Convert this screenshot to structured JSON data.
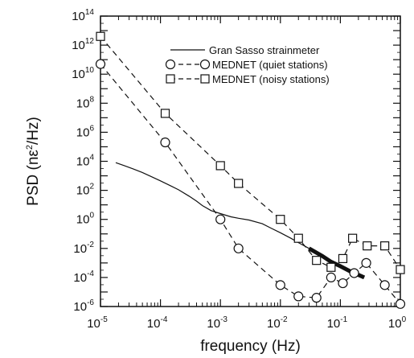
{
  "chart_data": {
    "type": "line",
    "xlabel": "frequency (Hz)",
    "ylabel_main": "PSD (nε",
    "ylabel_sup": "2",
    "ylabel_tail": "/Hz)",
    "x_scale": "log",
    "y_scale": "log",
    "xlim": [
      1e-05,
      1
    ],
    "ylim": [
      1e-06,
      100000000000000.0
    ],
    "grid": false,
    "legend_position": "top-right",
    "x_ticks": [
      {
        "value": 1e-05,
        "base": "10",
        "exp": "-5"
      },
      {
        "value": 0.0001,
        "base": "10",
        "exp": "-4"
      },
      {
        "value": 0.001,
        "base": "10",
        "exp": "-3"
      },
      {
        "value": 0.01,
        "base": "10",
        "exp": "-2"
      },
      {
        "value": 0.1,
        "base": "10",
        "exp": "-1"
      },
      {
        "value": 1,
        "base": "10",
        "exp": "0"
      }
    ],
    "y_ticks": [
      {
        "value": 1e-06,
        "base": "10",
        "exp": "-6"
      },
      {
        "value": 0.0001,
        "base": "10",
        "exp": "-4"
      },
      {
        "value": 0.01,
        "base": "10",
        "exp": "-2"
      },
      {
        "value": 1,
        "base": "10",
        "exp": "0"
      },
      {
        "value": 100.0,
        "base": "10",
        "exp": "2"
      },
      {
        "value": 10000.0,
        "base": "10",
        "exp": "4"
      },
      {
        "value": 1000000.0,
        "base": "10",
        "exp": "6"
      },
      {
        "value": 100000000.0,
        "base": "10",
        "exp": "8"
      },
      {
        "value": 10000000000.0,
        "base": "10",
        "exp": "10"
      },
      {
        "value": 1000000000000.0,
        "base": "10",
        "exp": "12"
      },
      {
        "value": 100000000000000.0,
        "base": "10",
        "exp": "14"
      }
    ],
    "series": [
      {
        "name": "Gran Sasso strainmeter",
        "style": "solid",
        "marker": "none",
        "points": [
          [
            1.8e-05,
            8000
          ],
          [
            2.5e-05,
            5000
          ],
          [
            3.5e-05,
            3000
          ],
          [
            5e-05,
            1700
          ],
          [
            7e-05,
            900
          ],
          [
            0.0001,
            450
          ],
          [
            0.00015,
            200
          ],
          [
            0.0002,
            110
          ],
          [
            0.0003,
            40
          ],
          [
            0.0004,
            18
          ],
          [
            0.0005,
            9
          ],
          [
            0.0007,
            4
          ],
          [
            0.001,
            2.5
          ],
          [
            0.0015,
            1.5
          ],
          [
            0.002,
            1.2
          ],
          [
            0.003,
            0.9
          ],
          [
            0.005,
            0.5
          ],
          [
            0.007,
            0.25
          ],
          [
            0.01,
            0.12
          ],
          [
            0.015,
            0.05
          ],
          [
            0.02,
            0.025
          ],
          [
            0.03,
            0.01
          ],
          [
            0.05,
            0.003
          ],
          [
            0.07,
            0.0012
          ],
          [
            0.1,
            0.0006
          ],
          [
            0.15,
            0.00025
          ],
          [
            0.2,
            0.00015
          ],
          [
            0.25,
            0.0001
          ]
        ]
      },
      {
        "name": "MEDNET (quiet stations)",
        "style": "dashed",
        "marker": "circle",
        "points": [
          [
            1e-05,
            50000000000.0
          ],
          [
            0.00012,
            200000.0
          ],
          [
            0.001,
            1
          ],
          [
            0.002,
            0.01
          ],
          [
            0.01,
            3e-05
          ],
          [
            0.02,
            5e-06
          ],
          [
            0.04,
            4e-06
          ],
          [
            0.07,
            0.0001
          ],
          [
            0.11,
            4e-05
          ],
          [
            0.17,
            0.0002
          ],
          [
            0.27,
            0.001
          ],
          [
            0.55,
            3e-05
          ],
          [
            1,
            1.5e-06
          ]
        ]
      },
      {
        "name": "MEDNET (noisy stations)",
        "style": "dashed",
        "marker": "square",
        "points": [
          [
            1e-05,
            4000000000000.0
          ],
          [
            0.00012,
            20000000.0
          ],
          [
            0.001,
            5000.0
          ],
          [
            0.002,
            300
          ],
          [
            0.01,
            1
          ],
          [
            0.02,
            0.05
          ],
          [
            0.04,
            0.0015
          ],
          [
            0.07,
            0.0005
          ],
          [
            0.11,
            0.002
          ],
          [
            0.16,
            0.05
          ],
          [
            0.28,
            0.015
          ],
          [
            0.55,
            0.015
          ],
          [
            1,
            0.00035
          ]
        ]
      }
    ]
  }
}
